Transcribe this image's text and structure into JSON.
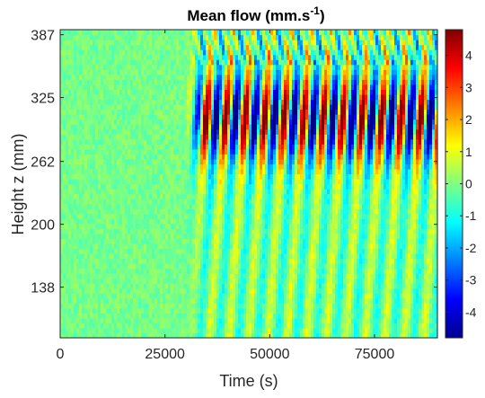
{
  "chart_data": {
    "type": "heatmap",
    "title": "Mean flow (mm.s",
    "title_superscript": "-1",
    "title_suffix": ")",
    "xlabel": "Time (s)",
    "ylabel": "Height z (mm)",
    "xlim": [
      0,
      90000
    ],
    "ylim": [
      88,
      392
    ],
    "x_ticks": [
      0,
      25000,
      50000,
      75000
    ],
    "x_tick_labels": [
      "0",
      "25000",
      "50000",
      "75000"
    ],
    "y_ticks": [
      138,
      200,
      262,
      325,
      387
    ],
    "y_tick_labels": [
      "138",
      "200",
      "262",
      "325",
      "387"
    ],
    "colorbar": {
      "colormap": "jet",
      "clim": [
        -4.8,
        4.8
      ],
      "ticks": [
        -4,
        -3,
        -2,
        -1,
        0,
        1,
        2,
        3,
        4
      ],
      "tick_labels": [
        "-4",
        "-3",
        "-2",
        "-1",
        "0",
        "1",
        "2",
        "3",
        "4"
      ]
    },
    "onset_time": 30000,
    "oscillation_period_s": 4650,
    "max_amplitude_height_mm": 305,
    "max_amplitude": 4.6
  }
}
